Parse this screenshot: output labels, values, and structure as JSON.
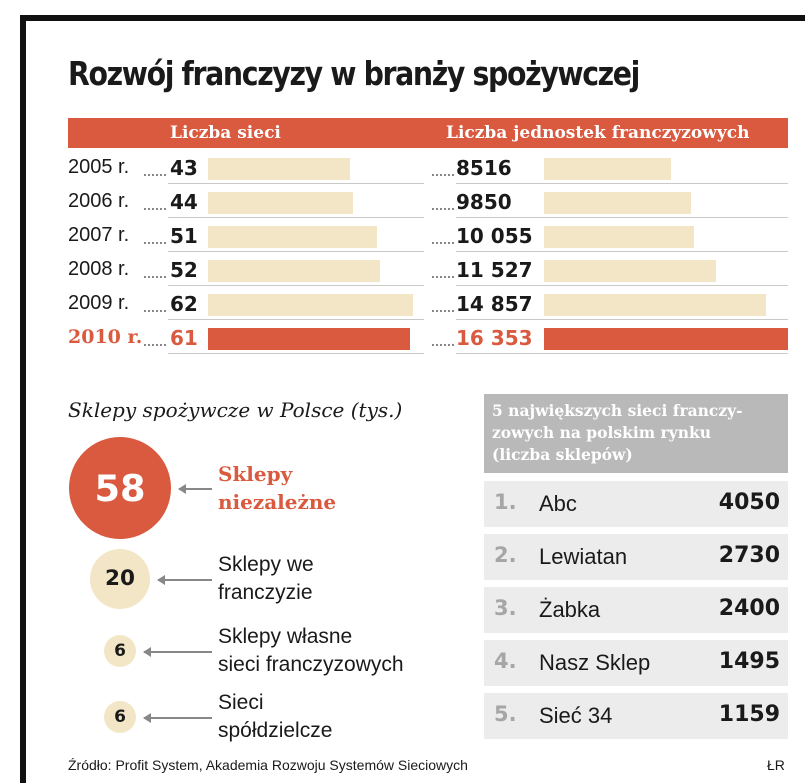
{
  "title": "Rozwój franczyzy w branży spożywczej",
  "colors": {
    "accent": "#d95a3f",
    "bar_light": "#f2e6c6",
    "grey_header": "#b9b9b9",
    "row_bg": "#ececec"
  },
  "chart_data": [
    {
      "type": "bar",
      "categories": [
        "2005 r.",
        "2006 r.",
        "2007 r.",
        "2008 r.",
        "2009 r.",
        "2010 r."
      ],
      "highlight_index": 5,
      "series": [
        {
          "name": "Liczba sieci",
          "values": [
            43,
            44,
            51,
            52,
            62,
            61
          ],
          "labels": [
            "43",
            "44",
            "51",
            "52",
            "62",
            "61"
          ],
          "xlim": [
            0,
            62
          ]
        },
        {
          "name": "Liczba jednostek franczyzowych",
          "values": [
            8516,
            9850,
            10055,
            11527,
            14857,
            16353
          ],
          "labels": [
            "8516",
            "9850",
            "10 055",
            "11 527",
            "14 857",
            "16 353"
          ],
          "xlim": [
            0,
            16353
          ]
        }
      ]
    },
    {
      "type": "table",
      "title": "Sklepy spożywcze w Polsce (tys.)",
      "items": [
        {
          "value": 58,
          "label": [
            "Sklepy",
            "niezależne"
          ],
          "highlight": true
        },
        {
          "value": 20,
          "label": [
            "Sklepy we",
            "franczyzie"
          ],
          "highlight": false
        },
        {
          "value": 6,
          "label": [
            "Sklepy własne",
            "sieci franczyzowych"
          ],
          "highlight": false
        },
        {
          "value": 6,
          "label": [
            "Sieci",
            "spółdzielcze"
          ],
          "highlight": false
        }
      ]
    },
    {
      "type": "table",
      "title": [
        "5 największych sieci franczy-",
        "zowych na polskim rynku",
        "(liczba sklepów)"
      ],
      "rows": [
        {
          "rank": "1.",
          "name": "Abc",
          "value": "4050"
        },
        {
          "rank": "2.",
          "name": "Lewiatan",
          "value": "2730"
        },
        {
          "rank": "3.",
          "name": "Żabka",
          "value": "2400"
        },
        {
          "rank": "4.",
          "name": "Nasz Sklep",
          "value": "1495"
        },
        {
          "rank": "5.",
          "name": "Sieć 34",
          "value": "1159"
        }
      ]
    }
  ],
  "source": "Źródło: Profit System, Akademia Rozwoju Systemów Sieciowych",
  "credit": "ŁR"
}
